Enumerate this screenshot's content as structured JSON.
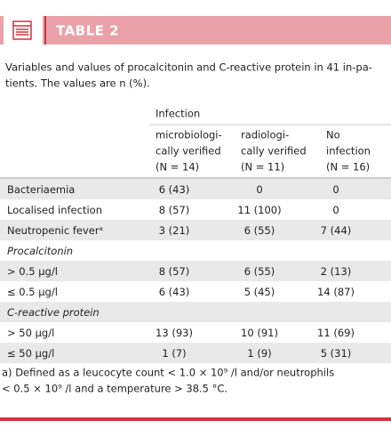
{
  "header": {
    "title": "TABLE 2"
  },
  "caption": [
    "Variables and values of procalcitonin and C-reactive protein in 41 in-pa-",
    "tients. The values are n (%)."
  ],
  "table": {
    "group_header": "Infection",
    "columns": [
      [
        "microbiologi-",
        "cally verified",
        "(N = 14)"
      ],
      [
        "radiologi-",
        "cally verified",
        "(N = 11)"
      ],
      [
        "No",
        "infection",
        "(N = 16)"
      ]
    ],
    "rows": [
      {
        "label": "Bacteriaemia",
        "values": [
          "6 (43)",
          "0",
          "0"
        ]
      },
      {
        "label": "Localised infection",
        "values": [
          "8 (57)",
          "11 (100)",
          "0"
        ]
      },
      {
        "label": "Neutropenic feverᵃ",
        "values": [
          "3 (21)",
          "6 (55)",
          "7 (44)"
        ]
      },
      {
        "label": "Procalcitonin"
      },
      {
        "label": "> 0.5 µg/l",
        "values": [
          "8 (57)",
          "6 (55)",
          "2 (13)"
        ]
      },
      {
        "label": "≤ 0.5 µg/l",
        "values": [
          "6 (43)",
          "5 (45)",
          "14 (87)"
        ]
      },
      {
        "label": "C-reactive protein"
      },
      {
        "label": "> 50 µg/l",
        "values": [
          "13 (93)",
          "10 (91)",
          "11 (69)"
        ]
      },
      {
        "label": "≤ 50 µg/l",
        "values": [
          "1 (7)",
          "1 (9)",
          "5 (31)"
        ]
      }
    ]
  },
  "footnote": [
    "a) Defined as a leucocyte count < 1.0 × 10⁹ /l and/or neutrophils",
    "< 0.5 × 10⁹ /l and a temperature > 38.5 °C."
  ]
}
